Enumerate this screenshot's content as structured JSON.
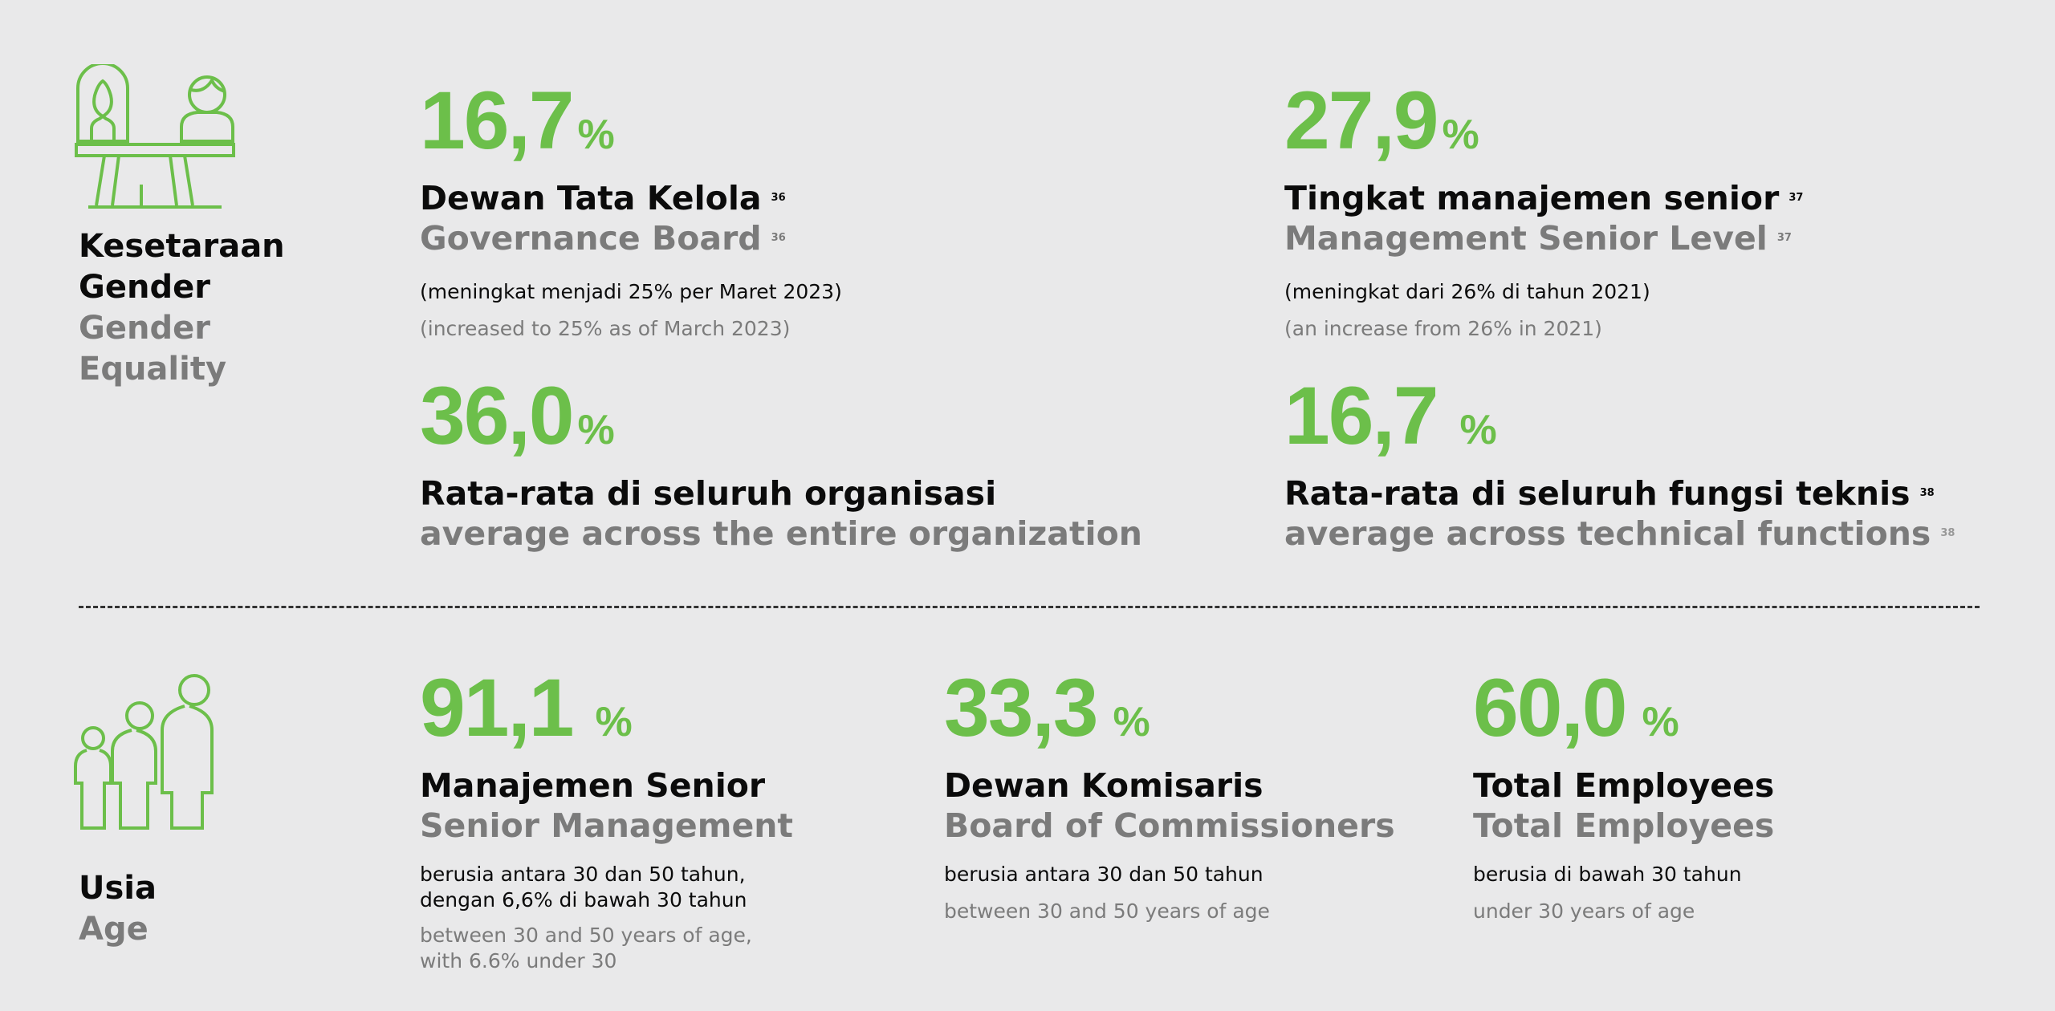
{
  "accent_color": "#6cbf4a",
  "gender": {
    "icon": "gender-balance-scale-icon",
    "title_id": [
      "Kesetaraan",
      "Gender"
    ],
    "title_en": [
      "Gender",
      "Equality"
    ],
    "stats": [
      {
        "value": "16,7",
        "unit": "%",
        "title_id": "Dewan Tata Kelola",
        "title_en": "Governance Board",
        "footnote": "36",
        "note_id": "(meningkat menjadi 25% per Maret 2023)",
        "note_en": "(increased to 25% as of March 2023)"
      },
      {
        "value": "27,9",
        "unit": "%",
        "title_id": "Tingkat manajemen senior",
        "title_en": "Management Senior Level",
        "footnote": "37",
        "note_id": "(meningkat dari 26% di tahun 2021)",
        "note_en": "(an increase from 26% in 2021)"
      },
      {
        "value": "36,0",
        "unit": "%",
        "title_id": "Rata-rata di seluruh organisasi",
        "title_en": "average across the entire organization"
      },
      {
        "value": "16,7",
        "unit": "%",
        "title_id": "Rata-rata di seluruh fungsi teknis",
        "title_en": "average across technical functions",
        "footnote": "38"
      }
    ]
  },
  "age": {
    "icon": "family-age-icon",
    "title_id": "Usia",
    "title_en": "Age",
    "stats": [
      {
        "value": "91,1",
        "unit": "%",
        "title_id": "Manajemen Senior",
        "title_en": "Senior Management",
        "note_id": [
          "berusia antara 30 dan 50 tahun,",
          "dengan 6,6% di bawah 30 tahun"
        ],
        "note_en": [
          "between 30 and 50 years of age,",
          "with 6.6% under 30"
        ]
      },
      {
        "value": "33,3",
        "unit": "%",
        "title_id": "Dewan Komisaris",
        "title_en": "Board of Commissioners",
        "note_id": [
          "berusia antara 30 dan 50 tahun"
        ],
        "note_en": [
          "between 30 and 50 years of age"
        ]
      },
      {
        "value": "60,0",
        "unit": "%",
        "title_id": "Total Employees",
        "title_en": "Total Employees",
        "note_id": [
          "berusia di bawah 30 tahun"
        ],
        "note_en": [
          "under 30 years of age"
        ]
      }
    ]
  }
}
